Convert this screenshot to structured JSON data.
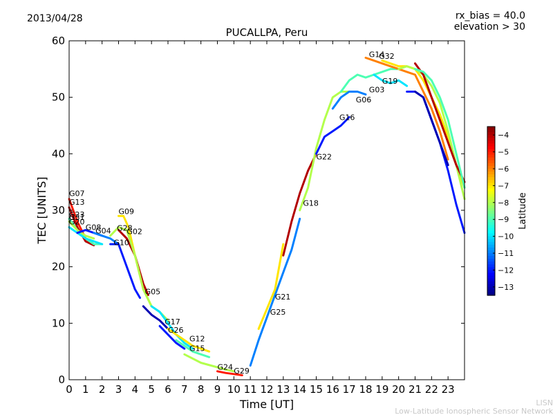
{
  "header": {
    "date": "2013/04/28",
    "rx_bias": "rx_bias = 40.0",
    "elevation": "elevation > 30"
  },
  "footer": {
    "credit_short": "LISN",
    "credit_long": "Low-Latitude Ionospheric Sensor Network"
  },
  "chart_data": {
    "type": "line",
    "title": "PUCALLPA, Peru",
    "xlabel": "Time [UT]",
    "ylabel": "TEC [UNITS]",
    "xlim": [
      0,
      24
    ],
    "ylim": [
      0,
      60
    ],
    "x_ticks": [
      0,
      1,
      2,
      3,
      4,
      5,
      6,
      7,
      8,
      9,
      10,
      11,
      12,
      13,
      14,
      15,
      16,
      17,
      18,
      19,
      20,
      21,
      22,
      23
    ],
    "y_ticks": [
      0,
      10,
      20,
      30,
      40,
      50,
      60
    ],
    "grid": false,
    "colorbar": {
      "label": "Latitude",
      "min": -13.5,
      "max": -3.5,
      "ticks": [
        -4,
        -5,
        -6,
        -7,
        -8,
        -9,
        -10,
        -11,
        -12,
        -13
      ],
      "tick_labels": [
        "−4",
        "−5",
        "−6",
        "−7",
        "−8",
        "−9",
        "−10",
        "−11",
        "−12",
        "−13"
      ]
    },
    "series": [
      {
        "name": "G07",
        "label_at": [
          0.0,
          32.5
        ],
        "lat": -5,
        "x": [
          0.0,
          0.5,
          1.0,
          1.5
        ],
        "y": [
          32.0,
          28.0,
          25.0,
          24.0
        ]
      },
      {
        "name": "G13",
        "label_at": [
          0.0,
          31.0
        ],
        "lat": -4,
        "x": [
          0.0,
          0.5,
          1.0,
          1.5
        ],
        "y": [
          30.5,
          27.0,
          24.5,
          23.8
        ]
      },
      {
        "name": "G23",
        "label_at": [
          0.0,
          28.8
        ],
        "lat": -9,
        "x": [
          0.0,
          0.5,
          1.0,
          1.5,
          2.0
        ],
        "y": [
          28.5,
          26.5,
          25.0,
          24.0,
          24.0
        ]
      },
      {
        "name": "G31",
        "label_at": [
          0.0,
          28.3
        ],
        "lat": -8,
        "x": [
          0.0,
          0.5,
          1.0,
          1.5
        ],
        "y": [
          28.0,
          26.5,
          25.5,
          25.0
        ]
      },
      {
        "name": "G20",
        "label_at": [
          0.0,
          27.5
        ],
        "lat": -10,
        "x": [
          0.0,
          0.5,
          1.0,
          1.5,
          2.0
        ],
        "y": [
          27.0,
          26.0,
          25.0,
          24.5,
          24.0
        ]
      },
      {
        "name": "G08",
        "label_at": [
          1.0,
          26.5
        ],
        "lat": -12,
        "x": [
          0.5,
          1.0,
          1.5,
          2.0
        ],
        "y": [
          26.0,
          26.5,
          26.0,
          25.5
        ]
      },
      {
        "name": "G04",
        "label_at": [
          1.6,
          25.9
        ],
        "lat": -11,
        "x": [
          1.5,
          2.0,
          2.5,
          3.0
        ],
        "y": [
          26.0,
          25.5,
          25.0,
          24.0
        ]
      },
      {
        "name": "G09",
        "label_at": [
          3.0,
          29.3
        ],
        "lat": -7,
        "x": [
          3.0,
          3.3,
          3.6,
          4.0,
          4.5,
          5.0
        ],
        "y": [
          29.0,
          29.0,
          27.0,
          22.0,
          16.0,
          13.0
        ]
      },
      {
        "name": "G28",
        "label_at": [
          2.9,
          26.4
        ],
        "lat": -4,
        "x": [
          3.0,
          3.5,
          4.0,
          4.5,
          4.8
        ],
        "y": [
          26.5,
          25.0,
          22.0,
          17.0,
          15.0
        ]
      },
      {
        "name": "G02",
        "label_at": [
          3.5,
          25.8
        ],
        "lat": -8,
        "x": [
          2.5,
          3.0,
          3.5,
          4.0,
          4.5,
          5.0,
          5.5,
          6.0
        ],
        "y": [
          25.5,
          27.0,
          26.5,
          22.0,
          16.0,
          13.0,
          12.0,
          10.5
        ]
      },
      {
        "name": "G10",
        "label_at": [
          2.7,
          23.8
        ],
        "lat": -12,
        "x": [
          2.5,
          3.0,
          3.5,
          4.0,
          4.3
        ],
        "y": [
          24.0,
          24.0,
          20.0,
          16.0,
          14.5
        ]
      },
      {
        "name": "G05",
        "label_at": [
          4.6,
          15.1
        ],
        "lat": -13,
        "x": [
          4.5,
          5.0,
          5.5,
          6.0
        ],
        "y": [
          13.0,
          11.5,
          10.5,
          9.0
        ]
      },
      {
        "name": "G17",
        "label_at": [
          5.8,
          9.8
        ],
        "lat": -10,
        "x": [
          5.0,
          5.5,
          6.0,
          6.5,
          7.0,
          7.5
        ],
        "y": [
          13.0,
          12.0,
          10.0,
          8.0,
          6.5,
          5.5
        ]
      },
      {
        "name": "G26",
        "label_at": [
          6.0,
          8.3
        ],
        "lat": -12,
        "x": [
          5.5,
          6.0,
          6.5,
          7.0
        ],
        "y": [
          9.5,
          8.0,
          6.5,
          5.5
        ]
      },
      {
        "name": "G12",
        "label_at": [
          7.3,
          6.8
        ],
        "lat": -7,
        "x": [
          6.0,
          6.5,
          7.0,
          7.5,
          8.0,
          8.5
        ],
        "y": [
          9.0,
          8.0,
          7.0,
          6.0,
          5.5,
          5.0
        ]
      },
      {
        "name": "G15",
        "label_at": [
          7.3,
          5.1
        ],
        "lat": -9,
        "x": [
          6.5,
          7.0,
          7.5,
          8.0,
          8.5
        ],
        "y": [
          7.0,
          6.0,
          5.0,
          4.5,
          4.0
        ]
      },
      {
        "name": "G24",
        "label_at": [
          9.0,
          1.8
        ],
        "lat": -8,
        "x": [
          7.0,
          8.0,
          9.0,
          9.5,
          10.0
        ],
        "y": [
          4.5,
          3.0,
          2.2,
          1.8,
          1.5
        ]
      },
      {
        "name": "G29",
        "label_at": [
          10.0,
          1.1
        ],
        "lat": -5,
        "x": [
          9.0,
          9.5,
          10.0,
          10.5
        ],
        "y": [
          1.5,
          1.2,
          1.0,
          0.8
        ]
      },
      {
        "name": "G25",
        "label_at": [
          12.2,
          11.5
        ],
        "lat": -11,
        "x": [
          11.0,
          11.5,
          12.0,
          12.5,
          13.0,
          13.5,
          14.0
        ],
        "y": [
          2.5,
          7.0,
          11.0,
          15.0,
          19.0,
          23.0,
          28.5
        ]
      },
      {
        "name": "G21",
        "label_at": [
          12.5,
          14.2
        ],
        "lat": -7,
        "x": [
          11.5,
          12.0,
          12.5,
          13.0
        ],
        "y": [
          9.0,
          12.5,
          16.0,
          24.0
        ]
      },
      {
        "name": "G18",
        "label_at": [
          14.2,
          30.8
        ],
        "lat": -4,
        "x": [
          13.0,
          13.5,
          14.0,
          14.5,
          15.0
        ],
        "y": [
          22.0,
          28.0,
          33.0,
          37.0,
          40.0
        ]
      },
      {
        "name": "G22",
        "label_at": [
          15.0,
          39.0
        ],
        "lat": -8,
        "x": [
          14.0,
          14.5,
          15.0,
          15.5,
          16.0,
          16.5,
          17.0,
          17.5
        ],
        "y": [
          30.0,
          34.0,
          41.0,
          46.0,
          50.0,
          51.0,
          51.0,
          51.0
        ]
      },
      {
        "name": "G16",
        "label_at": [
          16.4,
          46.0
        ],
        "lat": -12,
        "x": [
          15.0,
          15.5,
          16.0,
          16.5,
          17.0
        ],
        "y": [
          40.0,
          43.0,
          44.0,
          45.0,
          46.5
        ]
      },
      {
        "name": "G06",
        "label_at": [
          17.4,
          49.1
        ],
        "lat": -11,
        "x": [
          16.0,
          16.5,
          17.0,
          17.5,
          18.0
        ],
        "y": [
          48.0,
          50.0,
          51.0,
          51.0,
          50.5
        ]
      },
      {
        "name": "G03",
        "label_at": [
          18.2,
          50.9
        ],
        "lat": -9,
        "x": [
          16.5,
          17.0,
          17.5,
          18.0,
          18.5,
          19.0,
          19.5,
          20.0
        ],
        "y": [
          51.0,
          53.0,
          54.0,
          53.5,
          54.0,
          54.5,
          55.0,
          55.0
        ]
      },
      {
        "name": "G19",
        "label_at": [
          19.0,
          52.4
        ],
        "lat": -10,
        "x": [
          18.5,
          19.0,
          19.5,
          20.0,
          20.5
        ],
        "y": [
          54.0,
          53.0,
          52.5,
          53.0,
          52.0
        ]
      },
      {
        "name": "G14",
        "label_at": [
          18.2,
          57.1
        ],
        "lat": -6,
        "x": [
          18.0,
          18.5,
          19.0,
          19.5,
          20.0,
          20.5,
          21.0,
          21.5,
          22.0,
          22.5,
          23.0
        ],
        "y": [
          57.0,
          56.5,
          56.0,
          55.5,
          55.0,
          54.5,
          54.0,
          51.0,
          48.0,
          44.0,
          39.0
        ]
      },
      {
        "name": "G32",
        "label_at": [
          18.8,
          56.8
        ],
        "lat": -7,
        "x": [
          19.0,
          19.5,
          20.0,
          20.5,
          21.0,
          21.5,
          22.0,
          22.5,
          23.0,
          23.5,
          24.0
        ],
        "y": [
          56.5,
          56.0,
          55.5,
          55.5,
          55.0,
          53.0,
          50.0,
          47.0,
          43.0,
          38.0,
          34.0
        ]
      },
      {
        "name": "",
        "lat": -8,
        "x": [
          20.0,
          20.5,
          21.0,
          21.5,
          22.0,
          22.5,
          23.0,
          23.5,
          24.0
        ],
        "y": [
          55.0,
          55.5,
          55.0,
          54.0,
          52.0,
          49.0,
          44.0,
          38.0,
          32.0
        ]
      },
      {
        "name": "",
        "lat": -12,
        "x": [
          20.5,
          21.0,
          21.5,
          22.0,
          22.5,
          23.0,
          23.5,
          24.0
        ],
        "y": [
          51.0,
          51.0,
          50.0,
          46.0,
          42.0,
          37.0,
          31.0,
          26.0
        ]
      },
      {
        "name": "",
        "lat": -13,
        "x": [
          21.0,
          21.5,
          22.0,
          22.5,
          23.0
        ],
        "y": [
          51.0,
          50.0,
          46.0,
          42.0,
          38.0
        ]
      },
      {
        "name": "",
        "lat": -4,
        "x": [
          21.0,
          21.5,
          22.0,
          22.5,
          23.0,
          23.5,
          24.0
        ],
        "y": [
          56.0,
          54.0,
          50.0,
          46.0,
          42.0,
          38.0,
          35.0
        ]
      },
      {
        "name": "",
        "lat": -9,
        "x": [
          21.0,
          21.5,
          22.0,
          22.5,
          23.0,
          23.5,
          24.0
        ],
        "y": [
          55.0,
          54.5,
          53.0,
          50.0,
          46.0,
          40.0,
          34.0
        ]
      }
    ]
  }
}
